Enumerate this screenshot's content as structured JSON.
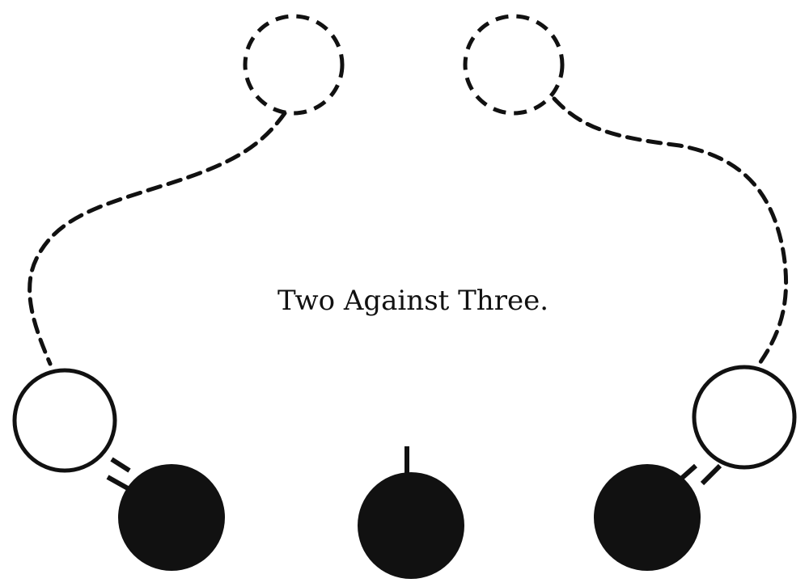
{
  "title": "Two Against Three.",
  "players": {
    "attackers_start": [
      "start-left",
      "start-right"
    ],
    "attackers_end": [
      "end-left",
      "end-right"
    ],
    "defenders": [
      "defender-left",
      "defender-center",
      "defender-right"
    ]
  },
  "colors": {
    "ink": "#111111",
    "background": "#ffffff"
  }
}
